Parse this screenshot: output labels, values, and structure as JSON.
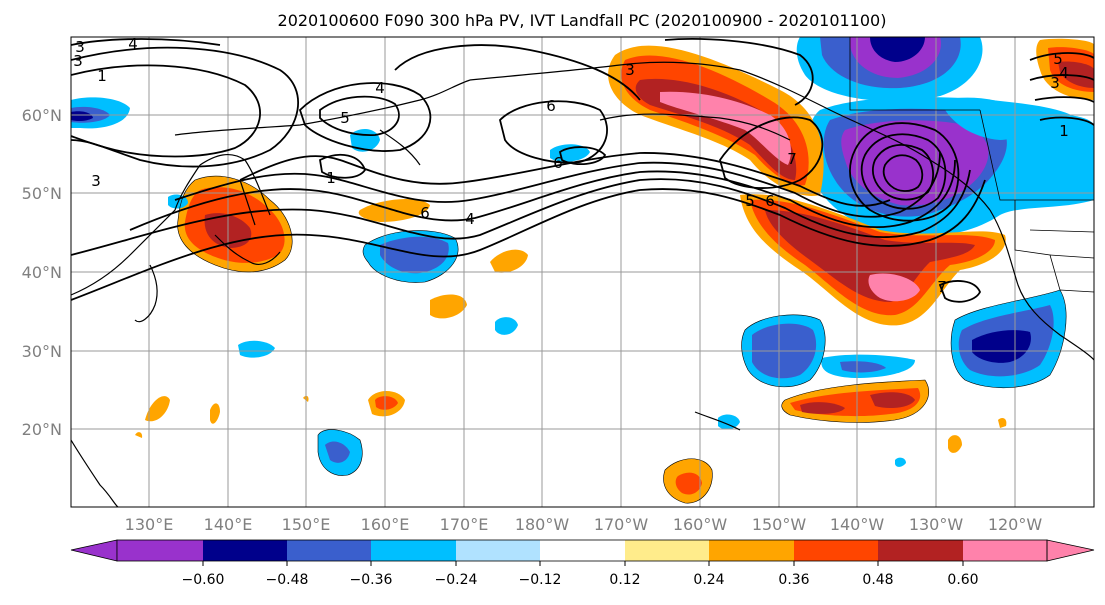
{
  "title": "2020100600 F090 300 hPa PV, IVT Landfall PC (2020100900 - 2020101100)",
  "map": {
    "lat_labels": [
      "60°N",
      "50°N",
      "40°N",
      "30°N",
      "20°N"
    ],
    "lon_labels": [
      "130°E",
      "140°E",
      "150°E",
      "160°E",
      "170°E",
      "180°W",
      "170°W",
      "160°W",
      "150°W",
      "140°W",
      "130°W",
      "120°W"
    ],
    "contour_labels": [
      "4",
      "3",
      "1",
      "4",
      "5",
      "6",
      "6",
      "1",
      "3",
      "6",
      "4",
      "6",
      "3",
      "5",
      "7",
      "3",
      "5",
      "4",
      "3",
      "1",
      "7"
    ]
  },
  "colorbar": {
    "colors": [
      "#9932cc",
      "#00008b",
      "#3a5fcd",
      "#00bfff",
      "#b0e2ff",
      "#ffffff",
      "#ffec8b",
      "#ffa500",
      "#ff4500",
      "#b22222",
      "#ff82ab"
    ],
    "tick_labels": [
      "−0.60",
      "−0.48",
      "−0.36",
      "−0.24",
      "−0.12",
      "0.12",
      "0.24",
      "0.36",
      "0.48",
      "0.60"
    ]
  },
  "legend_colors": {
    "gridline": "#999999",
    "axis_label": "#808080",
    "contour": "#000000"
  }
}
